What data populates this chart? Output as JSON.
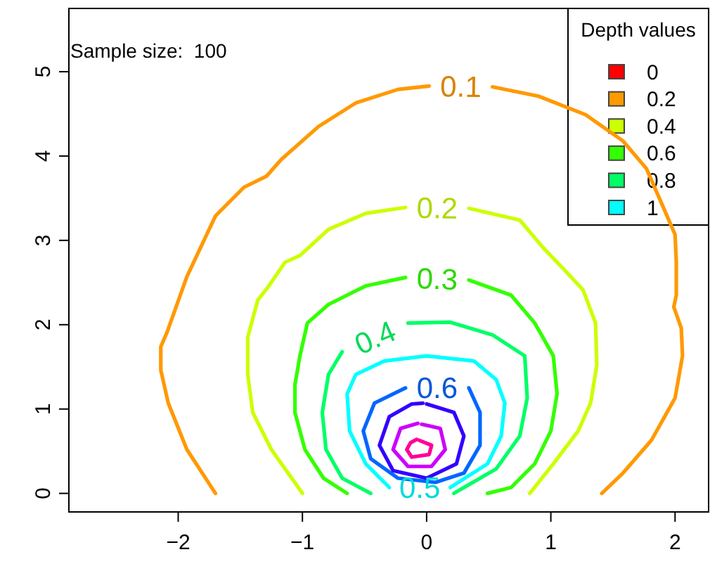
{
  "chart_data": {
    "type": "line",
    "xlim": [
      -2.88,
      2.27
    ],
    "ylim": [
      -0.22,
      5.75
    ],
    "xticks": [
      {
        "value": -2,
        "label": "−2"
      },
      {
        "value": -1,
        "label": "−1"
      },
      0,
      1,
      2
    ],
    "yticks": [
      0,
      1,
      2,
      3,
      4,
      5
    ],
    "grid": false,
    "legend": "top right",
    "legend_title": "Depth values",
    "annotations": [
      "Sample size:  100",
      {
        "text": "0.1",
        "x": 0.02,
        "y": 4.83
      },
      {
        "text": "0.2",
        "x": -0.17,
        "y": 3.39
      },
      {
        "text": "0.3",
        "x": -0.17,
        "y": 2.56
      },
      {
        "text": "0.4",
        "x": -0.68,
        "y": 1.68
      },
      {
        "text": "0.5",
        "x": -0.3,
        "y": 0.07
      },
      {
        "text": "0.6",
        "x": -0.17,
        "y": 1.25
      }
    ],
    "series": [
      {
        "color": "#ff9900",
        "x": [
          -1.7,
          -1.93,
          -2.08,
          -2.14,
          -2.14,
          -2.09,
          -1.93,
          -1.7,
          -1.47,
          -1.29,
          -1.17,
          -0.87,
          -0.57,
          -0.23,
          0.02,
          null,
          0.53,
          0.9,
          1.28,
          1.58,
          1.77,
          1.9,
          2.0,
          2.01,
          2.01,
          1.99,
          2.05,
          2.06,
          2.0,
          1.81,
          1.58,
          1.41
        ],
        "values": [
          0,
          0.52,
          1.07,
          1.46,
          1.74,
          1.91,
          2.57,
          3.29,
          3.63,
          3.76,
          3.96,
          4.35,
          4.63,
          4.79,
          4.83,
          null,
          4.82,
          4.71,
          4.49,
          4.18,
          3.85,
          3.41,
          3.07,
          2.74,
          2.35,
          2.21,
          1.96,
          1.63,
          1.13,
          0.63,
          0.24,
          0
        ]
      },
      {
        "color": "#ccff00",
        "x": [
          -1.0,
          -1.25,
          -1.4,
          -1.44,
          -1.44,
          -1.36,
          -1.27,
          -1.14,
          -1.02,
          -0.79,
          -0.49,
          -0.17,
          null,
          0.34,
          0.75,
          0.94,
          1.09,
          1.26,
          1.36,
          1.37,
          1.32,
          1.22,
          1.02,
          0.83
        ],
        "values": [
          0,
          0.52,
          0.96,
          1.41,
          1.85,
          2.29,
          2.46,
          2.74,
          2.82,
          3.13,
          3.32,
          3.39,
          null,
          3.38,
          3.24,
          2.91,
          2.68,
          2.41,
          2.02,
          1.52,
          1.07,
          0.74,
          0.35,
          0
        ]
      },
      {
        "color": "#33ff00",
        "x": [
          -0.64,
          -0.83,
          -0.98,
          -1.06,
          -1.06,
          -1.02,
          -0.96,
          -0.79,
          -0.49,
          -0.17,
          null,
          0.34,
          0.68,
          0.87,
          1.02,
          1.05,
          1.0,
          0.87,
          0.68,
          0.49
        ],
        "values": [
          0,
          0.18,
          0.52,
          0.96,
          1.29,
          1.63,
          2.02,
          2.24,
          2.46,
          2.56,
          null,
          2.53,
          2.35,
          2.02,
          1.63,
          1.18,
          0.74,
          0.35,
          0.07,
          0
        ]
      },
      {
        "color": "#00ff66",
        "x": [
          -0.45,
          -0.68,
          -0.81,
          -0.84,
          -0.79,
          -0.68,
          null,
          -0.15,
          0.19,
          0.53,
          0.79,
          0.81,
          0.75,
          0.56,
          0.22
        ],
        "values": [
          0,
          0.18,
          0.52,
          0.96,
          1.41,
          1.68,
          null,
          2.02,
          2.03,
          1.88,
          1.63,
          1.13,
          0.68,
          0.29,
          0
        ]
      },
      {
        "color": "#00ffff",
        "x": [
          -0.3,
          -0.49,
          -0.62,
          -0.64,
          -0.57,
          -0.34,
          0.0,
          0.38,
          0.56,
          0.63,
          0.6,
          0.49,
          0.19
        ],
        "values": [
          0.07,
          0.35,
          0.74,
          1.18,
          1.41,
          1.57,
          1.63,
          1.57,
          1.35,
          1.07,
          0.68,
          0.35,
          0.07
        ]
      },
      {
        "color": "#0066ff",
        "x": [
          -0.17,
          -0.42,
          -0.51,
          -0.45,
          -0.23,
          0.07,
          0.3,
          0.43,
          0.43,
          0.34
        ],
        "values": [
          1.25,
          1.07,
          0.74,
          0.41,
          0.18,
          0.13,
          0.24,
          0.57,
          0.96,
          1.25
        ]
      },
      {
        "color": "#3300ff",
        "x": [
          0.0,
          0.22,
          0.3,
          0.24,
          0.0,
          -0.27,
          -0.38,
          -0.3,
          -0.12,
          -0.03
        ],
        "values": [
          1.06,
          0.96,
          0.68,
          0.35,
          0.18,
          0.27,
          0.57,
          0.91,
          1.06,
          1.07
        ]
      },
      {
        "color": "#cc00ff",
        "x": [
          -0.04,
          0.11,
          0.15,
          0.04,
          -0.15,
          -0.27,
          -0.21,
          -0.07
        ],
        "values": [
          0.82,
          0.77,
          0.52,
          0.32,
          0.32,
          0.52,
          0.77,
          0.83
        ]
      },
      {
        "color": "#ff0099",
        "x": [
          -0.06,
          0.04,
          0.02,
          -0.12,
          -0.16,
          -0.13,
          -0.08
        ],
        "values": [
          0.63,
          0.57,
          0.46,
          0.43,
          0.52,
          0.6,
          0.64
        ]
      },
      {
        "name": "0",
        "color": "#ff0000"
      },
      {
        "name": "0.2",
        "color": "#ff9900"
      },
      {
        "name": "0.4",
        "color": "#ccff00"
      },
      {
        "name": "0.6",
        "color": "#33ff00"
      },
      {
        "name": "0.8",
        "color": "#00ff66"
      },
      {
        "name": "1",
        "color": "#00ffff"
      }
    ]
  }
}
